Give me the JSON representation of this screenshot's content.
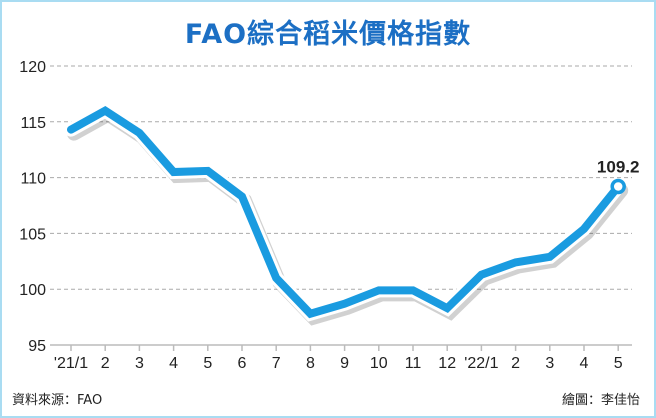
{
  "title": "FAO綜合稻米價格指數",
  "source": "資料來源：FAO",
  "credit": "繪圖：李佳怡",
  "chart_data": {
    "type": "line",
    "title": "FAO綜合稻米價格指數",
    "categories": [
      "'21/1",
      "2",
      "3",
      "4",
      "5",
      "6",
      "7",
      "8",
      "9",
      "10",
      "11",
      "12",
      "'22/1",
      "2",
      "3",
      "4",
      "5"
    ],
    "values": [
      114.3,
      116.0,
      114.0,
      110.5,
      110.6,
      108.3,
      101.0,
      97.8,
      98.7,
      99.9,
      99.9,
      98.3,
      101.3,
      102.4,
      102.9,
      105.4,
      109.2
    ],
    "ylim": [
      95,
      120
    ],
    "yticks": [
      95,
      100,
      105,
      110,
      115,
      120
    ],
    "grid": true,
    "annotation": "109.2",
    "line_color": "#1a9be0"
  }
}
